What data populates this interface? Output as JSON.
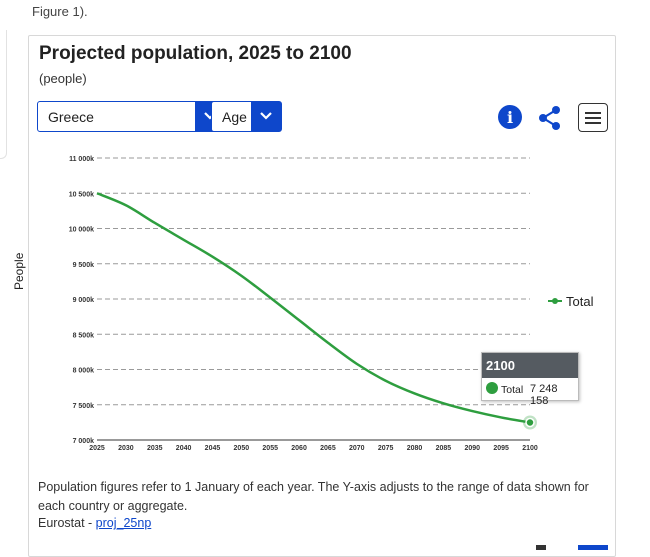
{
  "page": {
    "intro_text": "Figure 1)."
  },
  "header": {
    "title": "Projected population, 2025 to 2100",
    "subtitle": "(people)"
  },
  "controls": {
    "country_select": {
      "value": "Greece"
    },
    "dimension_select": {
      "value": "Age"
    },
    "info_label": "i"
  },
  "colors": {
    "accent": "#0e47cb",
    "series": "#2e9e3f",
    "tooltip_header": "#555b61"
  },
  "chart_data": {
    "type": "line",
    "title": "Projected population, 2025 to 2100",
    "subtitle": "(people)",
    "xlabel": "",
    "ylabel": "People",
    "x": [
      2025,
      2030,
      2035,
      2040,
      2045,
      2050,
      2055,
      2060,
      2065,
      2070,
      2075,
      2080,
      2085,
      2090,
      2095,
      2100
    ],
    "x_tick_labels": [
      "2025",
      "2030",
      "2035",
      "2040",
      "2045",
      "2050",
      "2055",
      "2060",
      "2065",
      "2070",
      "2075",
      "2080",
      "2085",
      "2090",
      "2095",
      "2100"
    ],
    "xlim": [
      2025,
      2100
    ],
    "ylim": [
      7000000,
      11000000
    ],
    "y_ticks": [
      7000000,
      7500000,
      8000000,
      8500000,
      9000000,
      9500000,
      10000000,
      10500000,
      11000000
    ],
    "y_tick_labels": [
      "7 000k",
      "7 500k",
      "8 000k",
      "8 500k",
      "9 000k",
      "9 500k",
      "10 000k",
      "10 500k",
      "11 000k"
    ],
    "series": [
      {
        "name": "Total",
        "values": [
          10500000,
          10330000,
          10080000,
          9840000,
          9600000,
          9330000,
          9020000,
          8700000,
          8380000,
          8080000,
          7840000,
          7660000,
          7520000,
          7410000,
          7320000,
          7248158
        ]
      }
    ],
    "grid": true,
    "legend": {
      "position": "right",
      "entries": [
        "Total"
      ]
    },
    "tooltip": {
      "year": "2100",
      "series": "Total",
      "value_text": "7 248 158"
    }
  },
  "footer": {
    "note": "Population figures refer to 1 January of each year. The Y-axis adjusts to the range of data shown for each country or aggregate.",
    "source_prefix": "Eurostat - ",
    "source_link": "proj_25np"
  }
}
